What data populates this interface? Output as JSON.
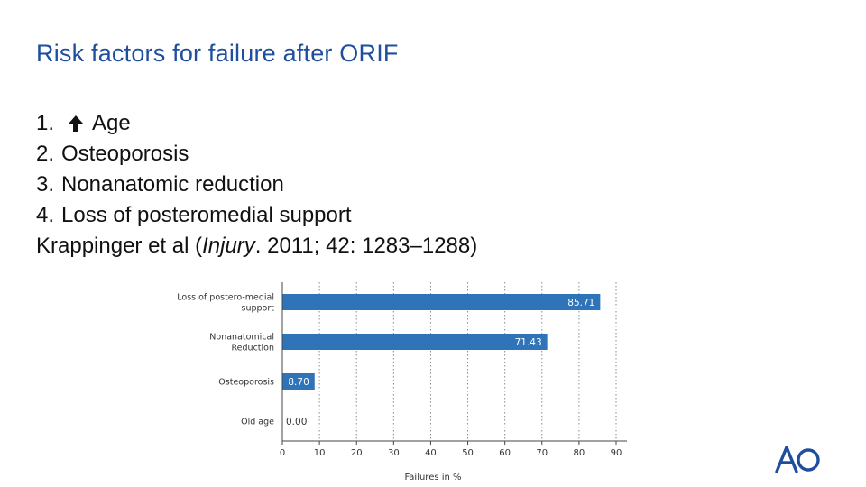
{
  "slide": {
    "title": "Risk factors for failure after ORIF",
    "list": [
      {
        "num": "1.",
        "text": "Age",
        "icon": "up-arrow-icon"
      },
      {
        "num": "2.",
        "text": "Osteoporosis"
      },
      {
        "num": "3.",
        "text": "Nonanatomic reduction"
      },
      {
        "num": "4.",
        "text": "Loss of posteromedial support"
      }
    ],
    "citation": {
      "prefix": "Krappinger et al (",
      "journal": "Injury",
      "suffix": ". 2011; 42: 1283–1288)"
    },
    "logo_text": "AO"
  },
  "colors": {
    "title": "#1f4e9c",
    "bar": "#2f73b8",
    "logo": "#1f4e9c"
  },
  "chart_data": {
    "type": "bar",
    "orientation": "horizontal",
    "categories": [
      [
        "Loss of postero-medial",
        "support"
      ],
      [
        "Nonanatomical",
        "Reduction"
      ],
      [
        "Osteoporosis"
      ],
      [
        "Old age"
      ]
    ],
    "values": [
      85.71,
      71.43,
      8.7,
      0.0
    ],
    "value_labels": [
      "85.71",
      "71.43",
      "8.70",
      "0.00"
    ],
    "xlabel": "Failures in %",
    "xlim": [
      0,
      90
    ],
    "xticks": [
      0,
      10,
      20,
      30,
      40,
      50,
      60,
      70,
      80,
      90
    ],
    "grid": "vertical dotted"
  }
}
